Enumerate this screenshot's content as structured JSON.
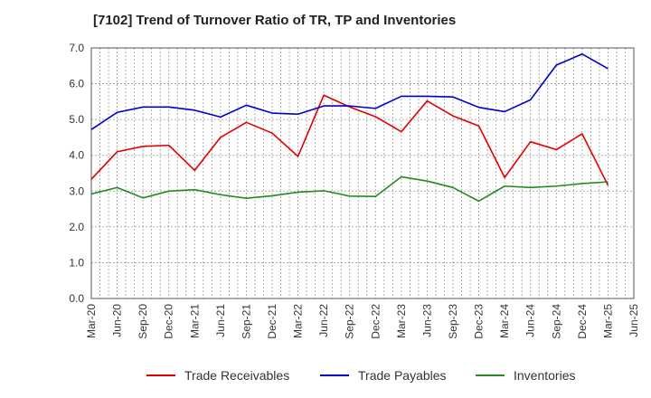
{
  "chart_data": {
    "type": "line",
    "title": "[7102]  Trend of Turnover Ratio of TR, TP and Inventories",
    "xlabel": "",
    "ylabel": "",
    "ylim": [
      0.0,
      7.0
    ],
    "y_ticks": [
      "0.0",
      "1.0",
      "2.0",
      "3.0",
      "4.0",
      "5.0",
      "6.0",
      "7.0"
    ],
    "x_ticks": [
      "Mar-20",
      "Jun-20",
      "Sep-20",
      "Dec-20",
      "Mar-21",
      "Jun-21",
      "Sep-21",
      "Dec-21",
      "Mar-22",
      "Jun-22",
      "Sep-22",
      "Dec-22",
      "Mar-23",
      "Jun-23",
      "Sep-23",
      "Dec-23",
      "Mar-24",
      "Jun-24",
      "Sep-24",
      "Dec-24",
      "Mar-25",
      "Jun-25"
    ],
    "x": [
      "Mar-20",
      "Jun-20",
      "Sep-20",
      "Dec-20",
      "Mar-21",
      "Jun-21",
      "Sep-21",
      "Dec-21",
      "Mar-22",
      "Jun-22",
      "Sep-22",
      "Dec-22",
      "Mar-23",
      "Jun-23",
      "Sep-23",
      "Dec-23",
      "Mar-24",
      "Jun-24",
      "Sep-24",
      "Dec-24",
      "Mar-25"
    ],
    "grid": true,
    "legend_position": "bottom",
    "series": [
      {
        "name": "Trade Receivables",
        "color": "#e00000",
        "values": [
          3.33,
          4.1,
          4.25,
          4.28,
          3.58,
          4.5,
          4.92,
          4.62,
          3.97,
          5.68,
          5.35,
          5.08,
          4.66,
          5.52,
          5.1,
          4.82,
          3.38,
          4.38,
          4.16,
          4.6,
          3.16
        ]
      },
      {
        "name": "Trade Payables",
        "color": "#0000cc",
        "values": [
          4.72,
          5.2,
          5.35,
          5.35,
          5.26,
          5.07,
          5.4,
          5.18,
          5.15,
          5.38,
          5.38,
          5.31,
          5.65,
          5.65,
          5.63,
          5.34,
          5.22,
          5.55,
          6.52,
          6.83,
          6.42
        ]
      },
      {
        "name": "Inventories",
        "color": "#228b22",
        "values": [
          2.92,
          3.1,
          2.81,
          3.0,
          3.04,
          2.9,
          2.8,
          2.87,
          2.97,
          3.01,
          2.86,
          2.85,
          3.4,
          3.28,
          3.1,
          2.72,
          3.14,
          3.1,
          3.14,
          3.21,
          3.26
        ]
      }
    ]
  }
}
